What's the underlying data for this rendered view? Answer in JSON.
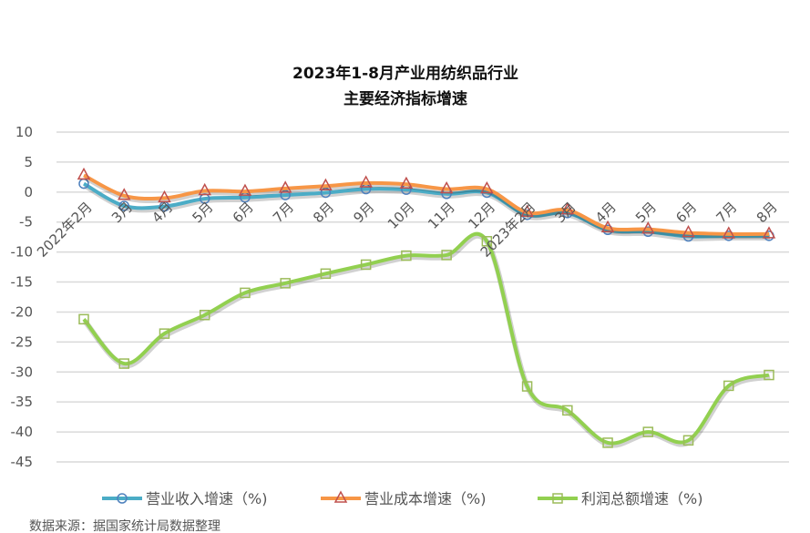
{
  "chart_data": {
    "type": "line",
    "title": [
      "2023年1-8月产业用纺织品行业",
      "主要经济指标增速"
    ],
    "categories": [
      "2022年2月",
      "3月",
      "4月",
      "5月",
      "6月",
      "7月",
      "8月",
      "9月",
      "10月",
      "11月",
      "12月",
      "2023年2月",
      "3月",
      "4月",
      "5月",
      "6月",
      "7月",
      "8月"
    ],
    "ylim": [
      -45,
      10
    ],
    "yticks": [
      10,
      5,
      0,
      -5,
      -10,
      -15,
      -20,
      -25,
      -30,
      -35,
      -40,
      -45
    ],
    "grid": true,
    "legend_position": "bottom",
    "series": [
      {
        "name": "营业收入增速（%)",
        "color": "#4BACC6",
        "marker": "circle",
        "marker_color": "#4F81BD",
        "values": [
          1.4,
          -2.3,
          -2.4,
          -1.1,
          -0.9,
          -0.5,
          -0.1,
          0.5,
          0.4,
          -0.3,
          -0.1,
          -3.8,
          -3.5,
          -6.3,
          -6.6,
          -7.4,
          -7.3,
          -7.3
        ]
      },
      {
        "name": "营业成本增速（%)",
        "color": "#F79646",
        "marker": "triangle",
        "marker_color": "#C0504D",
        "values": [
          2.8,
          -0.6,
          -1.0,
          0.2,
          0.1,
          0.6,
          1.0,
          1.5,
          1.3,
          0.5,
          0.5,
          -3.4,
          -3.0,
          -6.0,
          -6.2,
          -6.8,
          -7.0,
          -7.0
        ]
      },
      {
        "name": "利润总额增速（%)",
        "color": "#92D050",
        "marker": "square",
        "marker_color": "#9BBB59",
        "values": [
          -21.2,
          -28.6,
          -23.6,
          -20.5,
          -16.8,
          -15.2,
          -13.6,
          -12.1,
          -10.6,
          -10.5,
          -8.2,
          -32.4,
          -36.4,
          -41.8,
          -40.0,
          -41.4,
          -32.3,
          -30.5
        ]
      }
    ]
  },
  "source": "数据来源：据国家统计局数据整理"
}
